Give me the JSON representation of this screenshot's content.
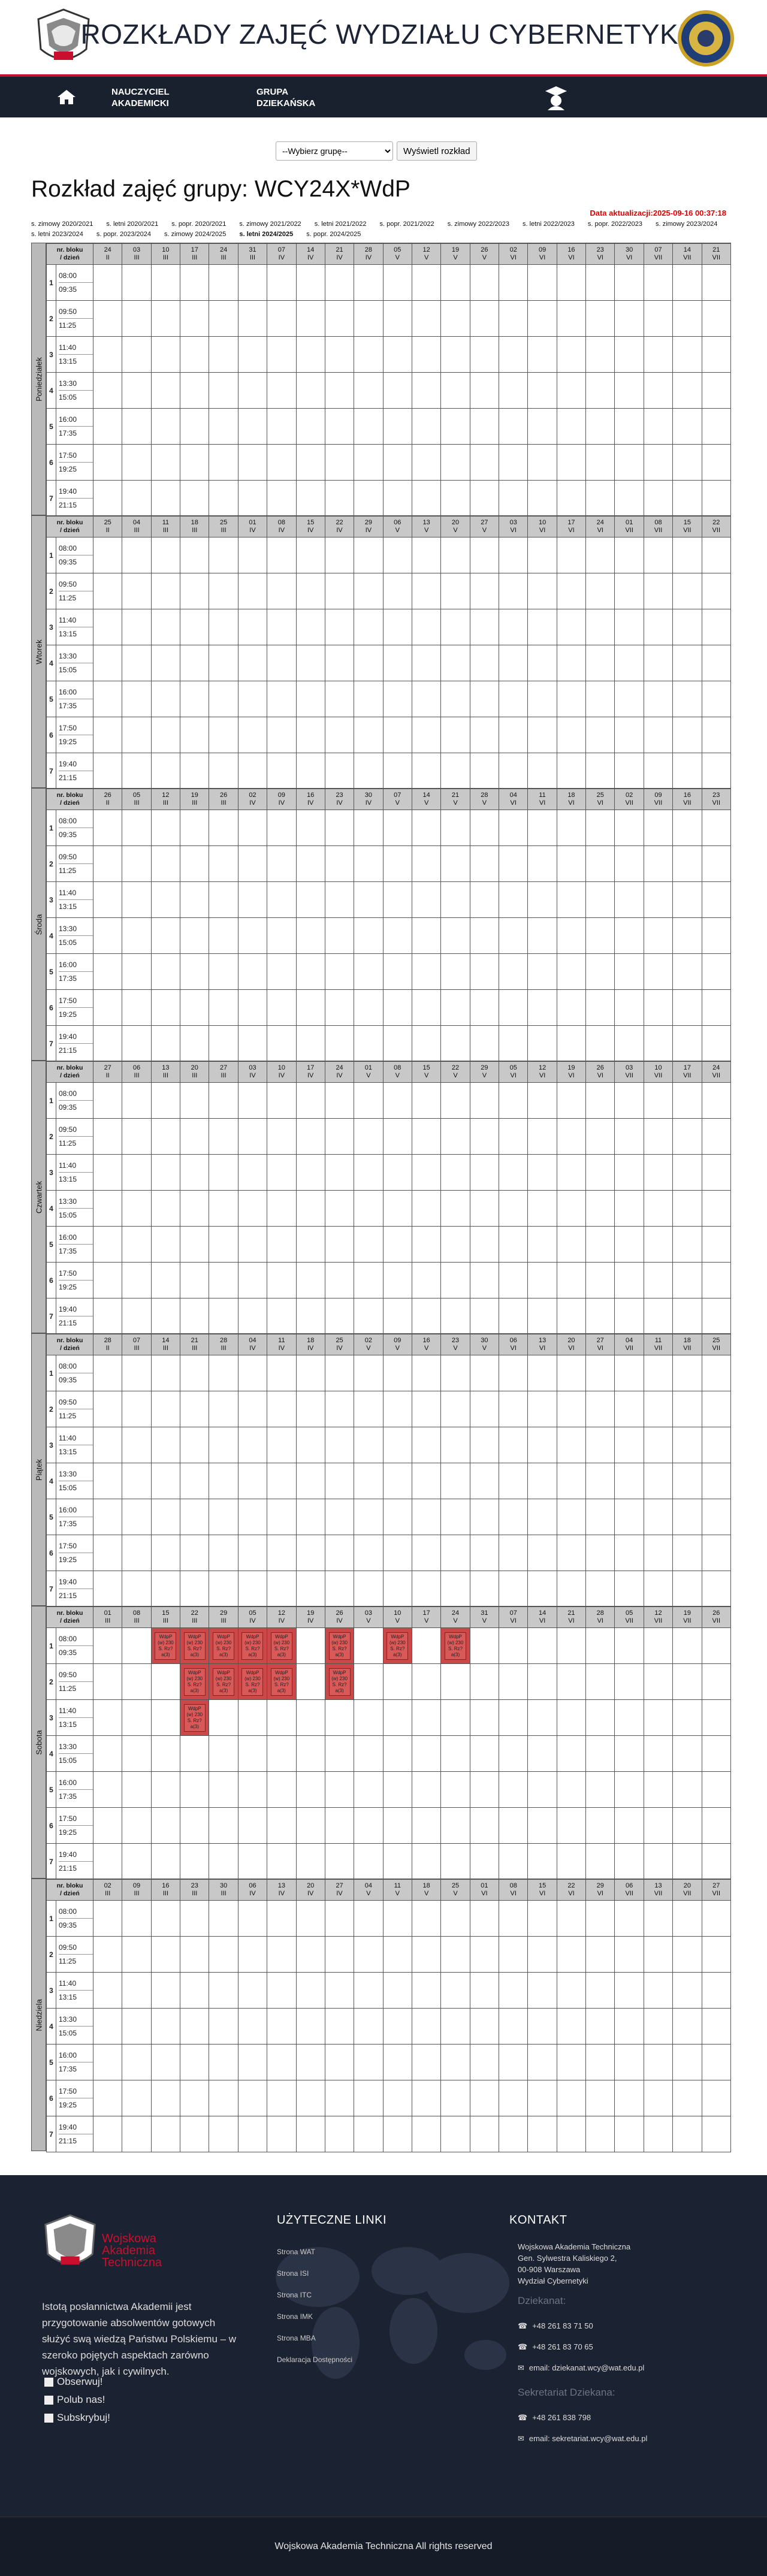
{
  "site": {
    "title": "ROZKŁADY ZAJĘĆ WYDZIAŁU CYBERNETYKI",
    "logo_text": "WAT"
  },
  "nav": {
    "home_icon": "home-icon",
    "link1": "NAUCZYCIEL AKADEMICKI",
    "link1_a": "NAUCZYCIEL",
    "link1_b": "AKADEMICKI",
    "link2_a": "GRUPA",
    "link2_b": "DZIEKAŃSKA"
  },
  "selector": {
    "placeholder": "--Wybierz grupę--",
    "button": "Wyświetl rozkład"
  },
  "schedule": {
    "title": "Rozkład zajęć grupy: WCY24X*WdP",
    "updated": "Data aktualizacji:2025-09-16 00:37:18",
    "semesters": [
      {
        "label": "s. zimowy 2020/2021",
        "active": false
      },
      {
        "label": "s. letni 2020/2021",
        "active": false
      },
      {
        "label": "s. popr. 2020/2021",
        "active": false
      },
      {
        "label": "s. zimowy 2021/2022",
        "active": false
      },
      {
        "label": "s. letni 2021/2022",
        "active": false
      },
      {
        "label": "s. popr. 2021/2022",
        "active": false
      },
      {
        "label": "s. zimowy 2022/2023",
        "active": false
      },
      {
        "label": "s. letni 2022/2023",
        "active": false
      },
      {
        "label": "s. popr. 2022/2023",
        "active": false
      },
      {
        "label": "s. zimowy 2023/2024",
        "active": false
      },
      {
        "label": "s. letni 2023/2024",
        "active": false
      },
      {
        "label": "s. popr. 2023/2024",
        "active": false
      },
      {
        "label": "s. zimowy 2024/2025",
        "active": false
      },
      {
        "label": "s. letni 2024/2025",
        "active": true
      },
      {
        "label": "s. popr. 2024/2025",
        "active": false
      }
    ],
    "header_label_1": "nr. bloku",
    "header_label_2": "/ dzień",
    "blocks": [
      {
        "nr": "1",
        "start": "08:00",
        "end": "09:35"
      },
      {
        "nr": "2",
        "start": "09:50",
        "end": "11:25"
      },
      {
        "nr": "3",
        "start": "11:40",
        "end": "13:15"
      },
      {
        "nr": "4",
        "start": "13:30",
        "end": "15:05"
      },
      {
        "nr": "5",
        "start": "16:00",
        "end": "17:35"
      },
      {
        "nr": "6",
        "start": "17:50",
        "end": "19:25"
      },
      {
        "nr": "7",
        "start": "19:40",
        "end": "21:15"
      }
    ],
    "days": [
      {
        "name": "Poniedziałek",
        "dates": [
          [
            "24",
            "II"
          ],
          [
            "03",
            "III"
          ],
          [
            "10",
            "III"
          ],
          [
            "17",
            "III"
          ],
          [
            "24",
            "III"
          ],
          [
            "31",
            "III"
          ],
          [
            "07",
            "IV"
          ],
          [
            "14",
            "IV"
          ],
          [
            "21",
            "IV"
          ],
          [
            "28",
            "IV"
          ],
          [
            "05",
            "V"
          ],
          [
            "12",
            "V"
          ],
          [
            "19",
            "V"
          ],
          [
            "26",
            "V"
          ],
          [
            "02",
            "VI"
          ],
          [
            "09",
            "VI"
          ],
          [
            "16",
            "VI"
          ],
          [
            "23",
            "VI"
          ],
          [
            "30",
            "VI"
          ],
          [
            "07",
            "VII"
          ],
          [
            "14",
            "VII"
          ],
          [
            "21",
            "VII"
          ]
        ],
        "lessons": []
      },
      {
        "name": "Wtorek",
        "dates": [
          [
            "25",
            "II"
          ],
          [
            "04",
            "III"
          ],
          [
            "11",
            "III"
          ],
          [
            "18",
            "III"
          ],
          [
            "25",
            "III"
          ],
          [
            "01",
            "IV"
          ],
          [
            "08",
            "IV"
          ],
          [
            "15",
            "IV"
          ],
          [
            "22",
            "IV"
          ],
          [
            "29",
            "IV"
          ],
          [
            "06",
            "V"
          ],
          [
            "13",
            "V"
          ],
          [
            "20",
            "V"
          ],
          [
            "27",
            "V"
          ],
          [
            "03",
            "VI"
          ],
          [
            "10",
            "VI"
          ],
          [
            "17",
            "VI"
          ],
          [
            "24",
            "VI"
          ],
          [
            "01",
            "VII"
          ],
          [
            "08",
            "VII"
          ],
          [
            "15",
            "VII"
          ],
          [
            "22",
            "VII"
          ]
        ],
        "lessons": []
      },
      {
        "name": "Środa",
        "dates": [
          [
            "26",
            "II"
          ],
          [
            "05",
            "III"
          ],
          [
            "12",
            "III"
          ],
          [
            "19",
            "III"
          ],
          [
            "26",
            "III"
          ],
          [
            "02",
            "IV"
          ],
          [
            "09",
            "IV"
          ],
          [
            "16",
            "IV"
          ],
          [
            "23",
            "IV"
          ],
          [
            "30",
            "IV"
          ],
          [
            "07",
            "V"
          ],
          [
            "14",
            "V"
          ],
          [
            "21",
            "V"
          ],
          [
            "28",
            "V"
          ],
          [
            "04",
            "VI"
          ],
          [
            "11",
            "VI"
          ],
          [
            "18",
            "VI"
          ],
          [
            "25",
            "VI"
          ],
          [
            "02",
            "VII"
          ],
          [
            "09",
            "VII"
          ],
          [
            "16",
            "VII"
          ],
          [
            "23",
            "VII"
          ]
        ],
        "lessons": []
      },
      {
        "name": "Czwartek",
        "dates": [
          [
            "27",
            "II"
          ],
          [
            "06",
            "III"
          ],
          [
            "13",
            "III"
          ],
          [
            "20",
            "III"
          ],
          [
            "27",
            "III"
          ],
          [
            "03",
            "IV"
          ],
          [
            "10",
            "IV"
          ],
          [
            "17",
            "IV"
          ],
          [
            "24",
            "IV"
          ],
          [
            "01",
            "V"
          ],
          [
            "08",
            "V"
          ],
          [
            "15",
            "V"
          ],
          [
            "22",
            "V"
          ],
          [
            "29",
            "V"
          ],
          [
            "05",
            "VI"
          ],
          [
            "12",
            "VI"
          ],
          [
            "19",
            "VI"
          ],
          [
            "26",
            "VI"
          ],
          [
            "03",
            "VII"
          ],
          [
            "10",
            "VII"
          ],
          [
            "17",
            "VII"
          ],
          [
            "24",
            "VII"
          ]
        ],
        "lessons": []
      },
      {
        "name": "Piątek",
        "dates": [
          [
            "28",
            "II"
          ],
          [
            "07",
            "III"
          ],
          [
            "14",
            "III"
          ],
          [
            "21",
            "III"
          ],
          [
            "28",
            "III"
          ],
          [
            "04",
            "IV"
          ],
          [
            "11",
            "IV"
          ],
          [
            "18",
            "IV"
          ],
          [
            "25",
            "IV"
          ],
          [
            "02",
            "V"
          ],
          [
            "09",
            "V"
          ],
          [
            "16",
            "V"
          ],
          [
            "23",
            "V"
          ],
          [
            "30",
            "V"
          ],
          [
            "06",
            "VI"
          ],
          [
            "13",
            "VI"
          ],
          [
            "20",
            "VI"
          ],
          [
            "27",
            "VI"
          ],
          [
            "04",
            "VII"
          ],
          [
            "11",
            "VII"
          ],
          [
            "18",
            "VII"
          ],
          [
            "25",
            "VII"
          ]
        ],
        "lessons": []
      },
      {
        "name": "Sobota",
        "dates": [
          [
            "01",
            "III"
          ],
          [
            "08",
            "III"
          ],
          [
            "15",
            "III"
          ],
          [
            "22",
            "III"
          ],
          [
            "29",
            "III"
          ],
          [
            "05",
            "IV"
          ],
          [
            "12",
            "IV"
          ],
          [
            "19",
            "IV"
          ],
          [
            "26",
            "IV"
          ],
          [
            "03",
            "V"
          ],
          [
            "10",
            "V"
          ],
          [
            "17",
            "V"
          ],
          [
            "24",
            "V"
          ],
          [
            "31",
            "V"
          ],
          [
            "07",
            "VI"
          ],
          [
            "14",
            "VI"
          ],
          [
            "21",
            "VI"
          ],
          [
            "28",
            "VI"
          ],
          [
            "05",
            "VII"
          ],
          [
            "12",
            "VII"
          ],
          [
            "19",
            "VII"
          ],
          [
            "26",
            "VII"
          ]
        ],
        "lessons": [
          {
            "col": 2,
            "block": 1,
            "text": "WdpP (w) 230 S. Rz?a(3)"
          },
          {
            "col": 3,
            "block": 1,
            "text": "WdpP (w) 230 S. Rz?a(3)"
          },
          {
            "col": 4,
            "block": 1,
            "text": "WdpP (w) 230 S. Rz?a(3)"
          },
          {
            "col": 5,
            "block": 1,
            "text": "WdpP (w) 230 S. Rz?a(3)"
          },
          {
            "col": 6,
            "block": 1,
            "text": "WdpP (w) 230 S. Rz?a(3)"
          },
          {
            "col": 8,
            "block": 1,
            "text": "WdpP (w) 230 S. Rz?a(3)"
          },
          {
            "col": 10,
            "block": 1,
            "text": "WdpP (w) 230 S. Rz?a(3)"
          },
          {
            "col": 12,
            "block": 1,
            "text": "WdpP (w) 230 S. Rz?a(3)"
          },
          {
            "col": 3,
            "block": 2,
            "text": "WdpP (w) 230 S. Rz?a(3)"
          },
          {
            "col": 4,
            "block": 2,
            "text": "WdpP (w) 230 S. Rz?a(3)"
          },
          {
            "col": 5,
            "block": 2,
            "text": "WdpP (w) 230 S. Rz?a(3)"
          },
          {
            "col": 6,
            "block": 2,
            "text": "WdpP (w) 230 S. Rz?a(3)"
          },
          {
            "col": 8,
            "block": 2,
            "text": "WdpP (w) 230 S. Rz?a(3)"
          },
          {
            "col": 3,
            "block": 3,
            "text": "WdpP (w) 230 S. Rz?a(3)"
          }
        ]
      },
      {
        "name": "Niedziela",
        "dates": [
          [
            "02",
            "III"
          ],
          [
            "09",
            "III"
          ],
          [
            "16",
            "III"
          ],
          [
            "23",
            "III"
          ],
          [
            "30",
            "III"
          ],
          [
            "06",
            "IV"
          ],
          [
            "13",
            "IV"
          ],
          [
            "20",
            "IV"
          ],
          [
            "27",
            "IV"
          ],
          [
            "04",
            "V"
          ],
          [
            "11",
            "V"
          ],
          [
            "18",
            "V"
          ],
          [
            "25",
            "V"
          ],
          [
            "01",
            "VI"
          ],
          [
            "08",
            "VI"
          ],
          [
            "15",
            "VI"
          ],
          [
            "22",
            "VI"
          ],
          [
            "29",
            "VI"
          ],
          [
            "06",
            "VII"
          ],
          [
            "13",
            "VII"
          ],
          [
            "20",
            "VII"
          ],
          [
            "27",
            "VII"
          ]
        ],
        "lessons": []
      }
    ]
  },
  "footer": {
    "logo_name_1": "Wojskowa",
    "logo_name_2": "Akademia",
    "logo_name_3": "Techniczna",
    "description": "Istotą posłannictwa Akademii jest przygotowanie absolwentów gotowych służyć swą wiedzą Państwu Polskiemu – w szeroko pojętych aspektach zarówno wojskowych, jak i cywilnych.",
    "social": [
      "Obserwuj!",
      "Polub nas!",
      "Subskrybuj!"
    ],
    "useful_links_title": "UŻYTECZNE LINKI",
    "useful_links": [
      "Strona WAT",
      "Strona ISI",
      "Strona ITC",
      "Strona IMK",
      "Strona MBA",
      "Deklaracja Dostępności"
    ],
    "contact_title": "KONTAKT",
    "address": [
      "Wojskowa Akademia Techniczna",
      "Gen. Sylwestra Kaliskiego 2,",
      "00-908 Warszawa",
      "Wydział Cybernetyki"
    ],
    "dean_label": "Dziekanat:",
    "dean_phone_1": "+48 261 83 71 50",
    "dean_phone_2": "+48 261 83 70 65",
    "dean_email": "email: dziekanat.wcy@wat.edu.pl",
    "sec_label": "Sekretariat Dziekana:",
    "sec_phone": "+48 261 838 798",
    "sec_email": "email: sekretariat.wcy@wat.edu.pl",
    "copyright": "Wojskowa Akademia Techniczna All rights reserved"
  }
}
